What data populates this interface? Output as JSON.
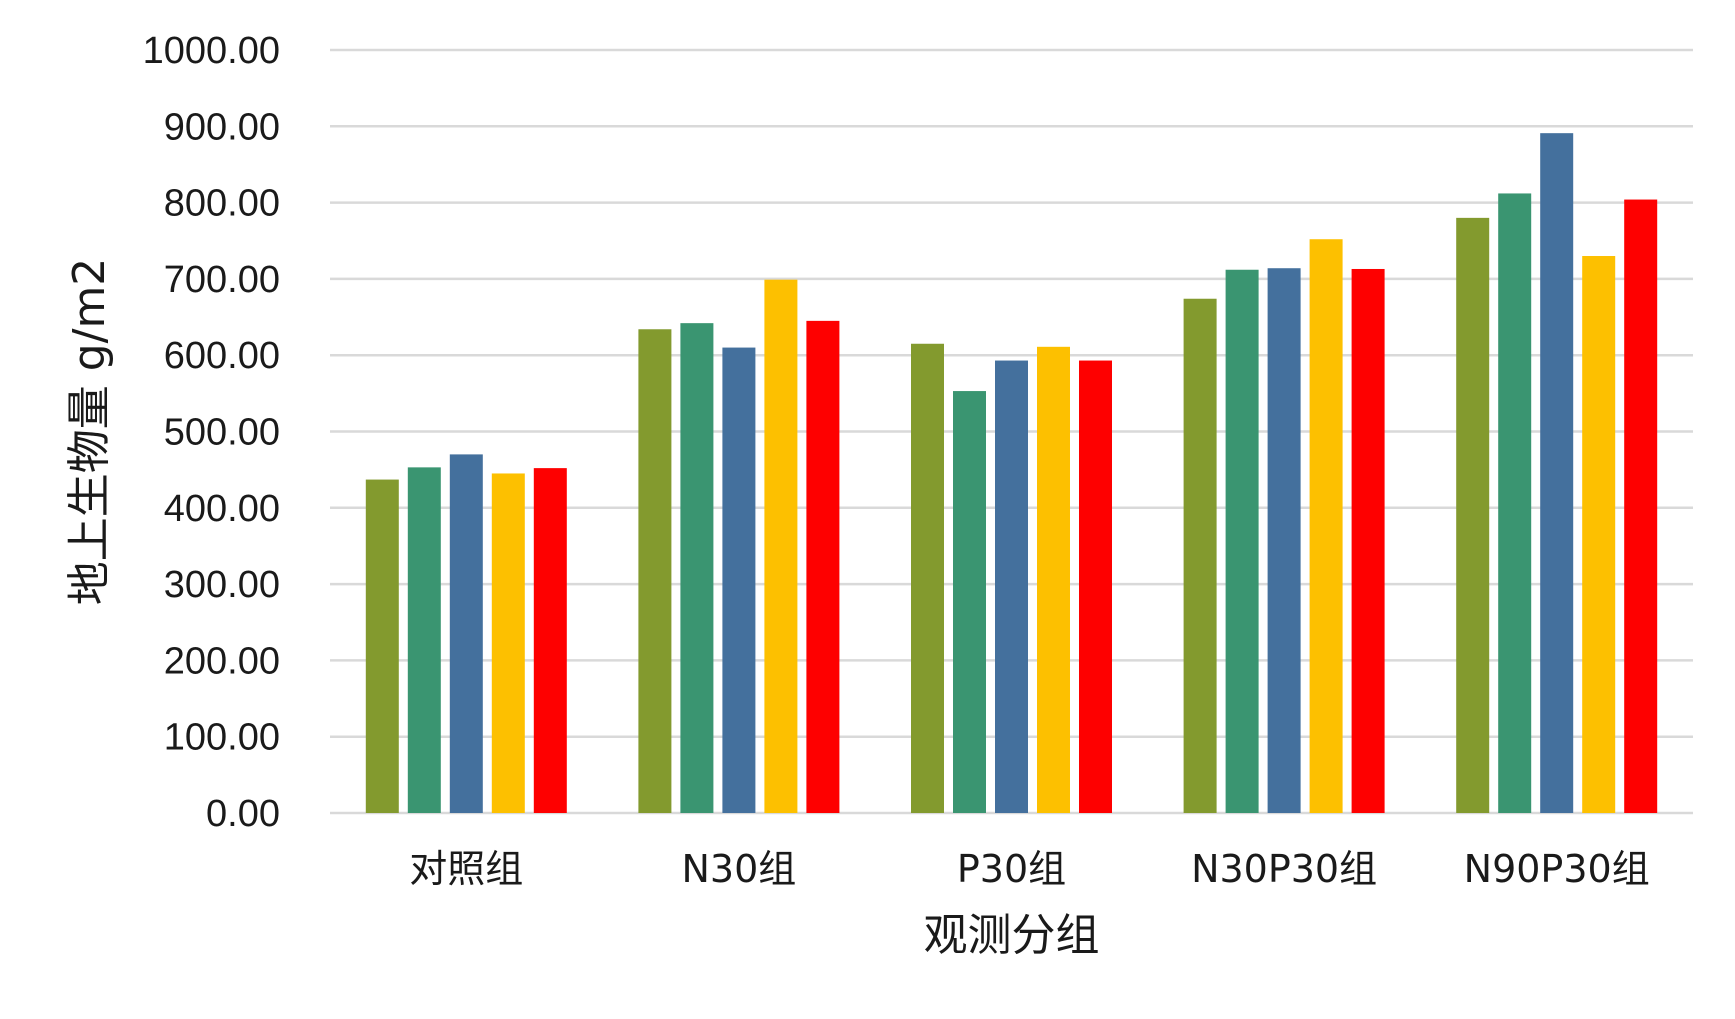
{
  "chart_data": {
    "type": "bar",
    "title": "",
    "xlabel": "观测分组",
    "ylabel": "地上生物量 g/m2",
    "ylim": [
      0,
      1000
    ],
    "yticks": [
      "0.00",
      "100.00",
      "200.00",
      "300.00",
      "400.00",
      "500.00",
      "600.00",
      "700.00",
      "800.00",
      "900.00",
      "1000.00"
    ],
    "grid": true,
    "legend": "none",
    "categories": [
      "对照组",
      "N30组",
      "P30组",
      "N30P30组",
      "N90P30组"
    ],
    "series": [
      {
        "color": "#839a2e",
        "values": [
          437,
          634,
          615,
          674,
          780
        ]
      },
      {
        "color": "#3a9571",
        "values": [
          453,
          642,
          553,
          712,
          812
        ]
      },
      {
        "color": "#44709d",
        "values": [
          470,
          610,
          593,
          714,
          891
        ]
      },
      {
        "color": "#fdc000",
        "values": [
          445,
          699,
          611,
          752,
          730
        ]
      },
      {
        "color": "#fe0000",
        "values": [
          452,
          645,
          593,
          713,
          804
        ]
      }
    ]
  }
}
